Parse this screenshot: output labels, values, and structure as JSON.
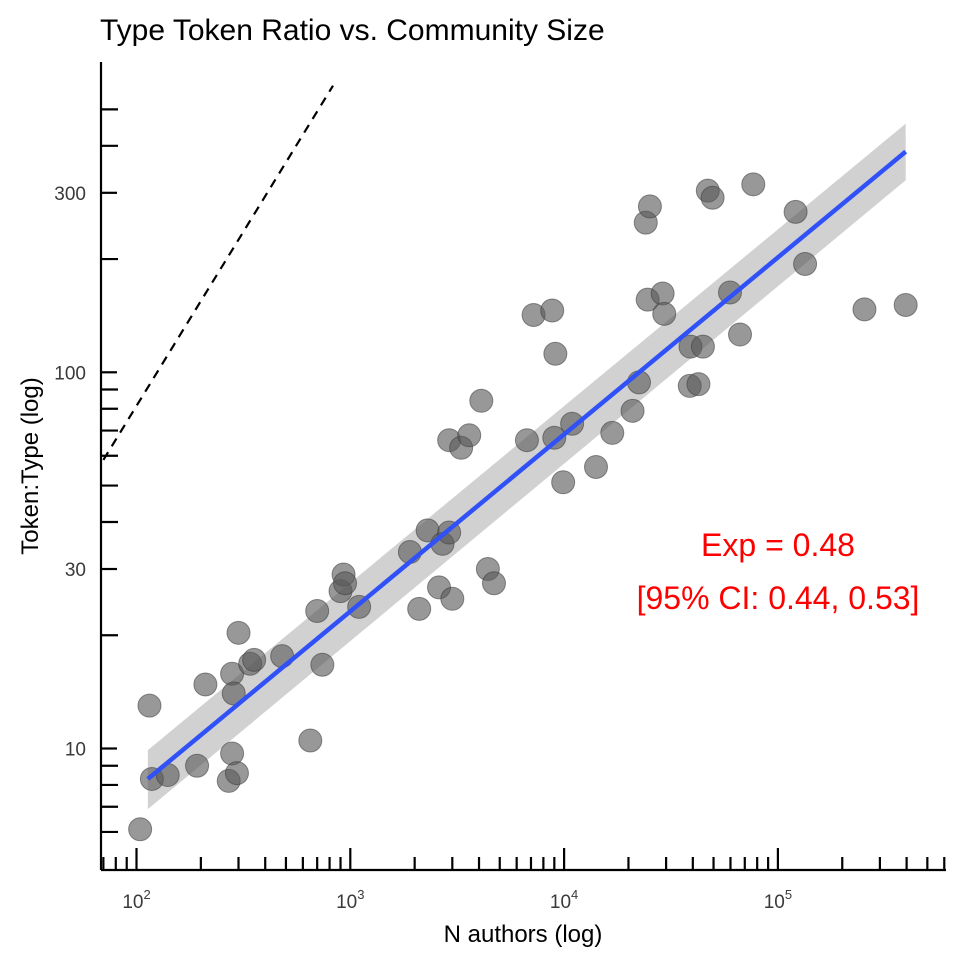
{
  "chart_data": {
    "type": "scatter",
    "title": "Type Token Ratio vs. Community Size",
    "xlabel": "N authors (log)",
    "ylabel": "Token:Type (log)",
    "x_scale": "log10",
    "y_scale": "log10",
    "xlim": [
      70,
      600000
    ],
    "ylim": [
      5.4,
      580
    ],
    "x_ticks": [
      {
        "value": 100,
        "base": "10",
        "exp": "2"
      },
      {
        "value": 1000,
        "base": "10",
        "exp": "3"
      },
      {
        "value": 10000,
        "base": "10",
        "exp": "4"
      },
      {
        "value": 100000,
        "base": "10",
        "exp": "5"
      }
    ],
    "y_ticks": [
      {
        "value": 10,
        "label": "10"
      },
      {
        "value": 30,
        "label": "30"
      },
      {
        "value": 100,
        "label": "100"
      },
      {
        "value": 300,
        "label": "300"
      }
    ],
    "grid": false,
    "colors": {
      "points": "#595959",
      "fit_line": "#3050F8",
      "ci_band": "#bdbdbd",
      "annotation": "#FF0000",
      "reference_line": "#000000"
    },
    "points": [
      [
        104,
        6.1
      ],
      [
        115,
        13.0
      ],
      [
        118,
        8.3
      ],
      [
        140,
        8.5
      ],
      [
        192,
        9.0
      ],
      [
        210,
        14.8
      ],
      [
        270,
        8.2
      ],
      [
        280,
        9.7
      ],
      [
        280,
        15.8
      ],
      [
        285,
        14.0
      ],
      [
        295,
        8.6
      ],
      [
        300,
        20.3
      ],
      [
        340,
        16.8
      ],
      [
        355,
        17.2
      ],
      [
        480,
        17.6
      ],
      [
        650,
        10.5
      ],
      [
        700,
        23.2
      ],
      [
        740,
        16.7
      ],
      [
        900,
        26.2
      ],
      [
        930,
        29.0
      ],
      [
        945,
        27.5
      ],
      [
        1100,
        23.8
      ],
      [
        1900,
        33.3
      ],
      [
        2100,
        23.5
      ],
      [
        2300,
        38.0
      ],
      [
        2600,
        26.8
      ],
      [
        2700,
        35.0
      ],
      [
        2900,
        37.5
      ],
      [
        2900,
        66.0
      ],
      [
        3000,
        25.0
      ],
      [
        3300,
        63.0
      ],
      [
        3600,
        68.0
      ],
      [
        4100,
        84.0
      ],
      [
        4400,
        30.0
      ],
      [
        4700,
        27.5
      ],
      [
        6700,
        66.0
      ],
      [
        7200,
        142.0
      ],
      [
        8800,
        146.0
      ],
      [
        9000,
        67.0
      ],
      [
        9100,
        112.0
      ],
      [
        9900,
        51.0
      ],
      [
        10900,
        73.0
      ],
      [
        14100,
        56.0
      ],
      [
        16800,
        69.0
      ],
      [
        20900,
        79.0
      ],
      [
        22400,
        94.0
      ],
      [
        24100,
        250.0
      ],
      [
        24600,
        156.0
      ],
      [
        25200,
        276.0
      ],
      [
        28900,
        162.0
      ],
      [
        29400,
        143.0
      ],
      [
        38700,
        92.0
      ],
      [
        39000,
        117.0
      ],
      [
        42500,
        93.0
      ],
      [
        44600,
        117.0
      ],
      [
        47000,
        304.0
      ],
      [
        49500,
        291.0
      ],
      [
        59700,
        163.0
      ],
      [
        66500,
        126.0
      ],
      [
        76700,
        316.0
      ],
      [
        121000,
        267.0
      ],
      [
        134000,
        194.0
      ],
      [
        254000,
        147.0
      ],
      [
        396000,
        151.0
      ]
    ],
    "fit": {
      "x_range": [
        113,
        396000
      ],
      "y_range": [
        8.3,
        386.0
      ],
      "ci_lower": [
        6.9,
        324.0
      ],
      "ci_upper": [
        9.9,
        458.0
      ]
    },
    "reference_line": {
      "style": "dashed",
      "start": [
        70,
        58.5
      ],
      "end": [
        830,
        578.0
      ]
    },
    "annotation": {
      "line1": "Exp = 0.48",
      "line2": "[95% CI: 0.44, 0.53]"
    }
  }
}
